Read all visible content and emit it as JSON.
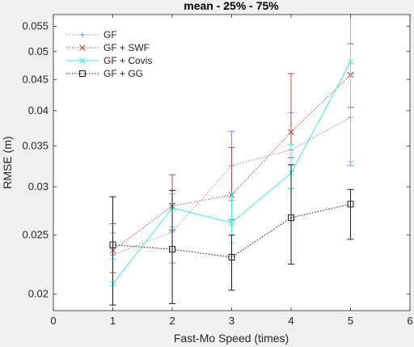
{
  "chart_data": {
    "type": "line",
    "title": "mean - 25% - 75%",
    "xlabel": "Fast-Mo Speed (times)",
    "ylabel": "RMSE (m)",
    "xlim": [
      0,
      6
    ],
    "ylim": [
      0.0188,
      0.0575
    ],
    "y_scale": "log",
    "grid": false,
    "legend_position": "top-left",
    "x_ticks": [
      "0",
      "1",
      "2",
      "3",
      "4",
      "5",
      "6"
    ],
    "y_ticks": [
      "0.02",
      "0.025",
      "0.03",
      "0.035",
      "0.04",
      "0.045",
      "0.05",
      "0.055"
    ],
    "x": [
      1,
      2,
      3,
      4,
      5
    ],
    "series": [
      {
        "name": "GF",
        "color": "#8a8aef",
        "marker": "plus",
        "values": [
          0.0232,
          0.0253,
          0.0325,
          0.0345,
          0.039
        ],
        "lower": [
          0.0188,
          0.0225,
          0.0285,
          0.0298,
          0.0325
        ],
        "upper": [
          0.0252,
          0.0282,
          0.037,
          0.0397,
          0.046
        ]
      },
      {
        "name": "GF + SWF",
        "color": "#b04a4a",
        "marker": "x",
        "values": [
          0.0236,
          0.0279,
          0.0291,
          0.0369,
          0.0458
        ],
        "lower": [
          0.0217,
          0.0255,
          0.0265,
          0.0335,
          0.0405
        ],
        "upper": [
          0.0261,
          0.0314,
          0.0348,
          0.046,
          0.0515
        ]
      },
      {
        "name": "GF + Covis",
        "color": "#48e8d8",
        "marker": "x",
        "values": [
          0.0208,
          0.0277,
          0.0262,
          0.0316,
          0.0481
        ],
        "lower": [
          0.0188,
          0.0258,
          0.0243,
          0.0298,
          0.033
        ],
        "upper": [
          0.0228,
          0.0292,
          0.0293,
          0.0352,
          0.0575
        ]
      },
      {
        "name": "GF + GG",
        "color": "#1a1a1a",
        "marker": "square",
        "values": [
          0.0241,
          0.0237,
          0.023,
          0.0267,
          0.0281
        ],
        "lower": [
          0.0192,
          0.0193,
          0.0203,
          0.0224,
          0.0246
        ],
        "upper": [
          0.0289,
          0.0296,
          0.025,
          0.0326,
          0.0297
        ]
      }
    ]
  }
}
